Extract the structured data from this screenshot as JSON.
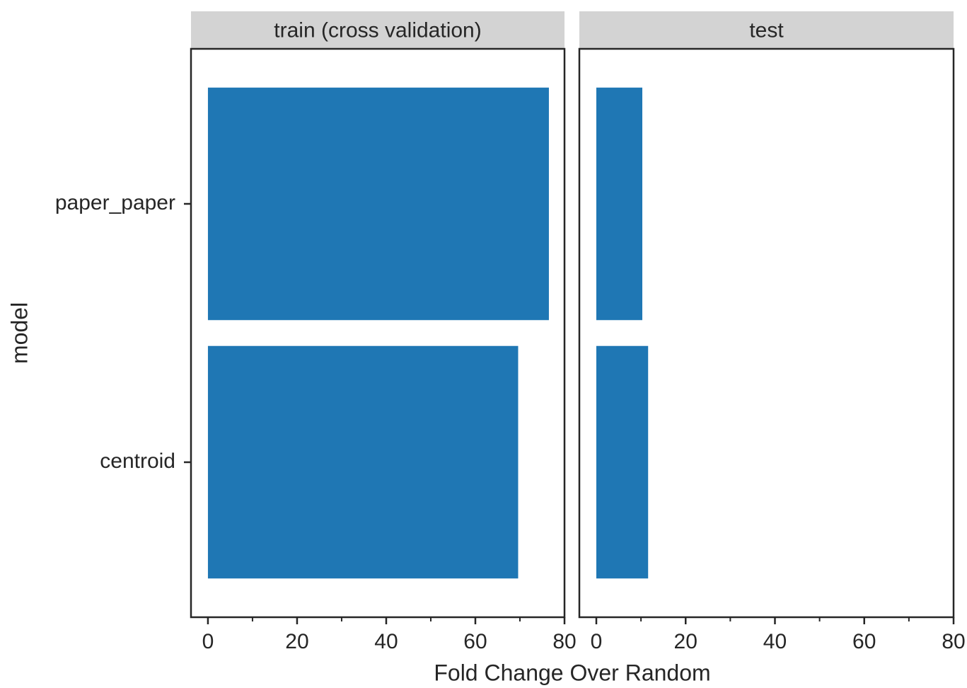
{
  "chart_data": [
    {
      "type": "barh",
      "title": "train (cross validation)",
      "xlabel": "Fold Change Over Random",
      "ylabel": "model",
      "categories": [
        "paper_paper",
        "centroid"
      ],
      "values": [
        76.5,
        69.6
      ],
      "color": "#1f77b4",
      "xlim": [
        -3.8,
        80
      ],
      "xticks": [
        0,
        20,
        40,
        60,
        80
      ],
      "minor_xticks": [
        10,
        30,
        50,
        70
      ]
    },
    {
      "type": "barh",
      "title": "test",
      "categories": [
        "paper_paper",
        "centroid"
      ],
      "values": [
        10.3,
        11.6
      ],
      "color": "#1f77b4",
      "xlim": [
        -3.8,
        80
      ],
      "xticks": [
        0,
        20,
        40,
        60,
        80
      ],
      "minor_xticks": [
        10,
        30,
        50,
        70
      ]
    }
  ]
}
